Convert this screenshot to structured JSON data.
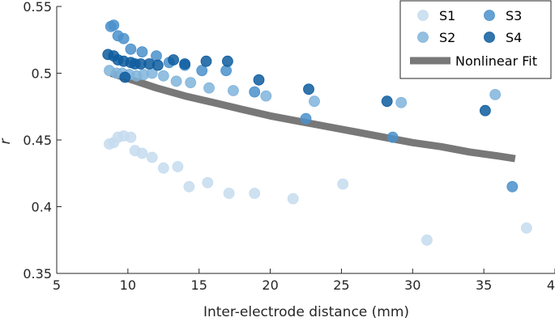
{
  "chart_data": {
    "type": "scatter",
    "xlabel": "Inter-electrode distance (mm)",
    "ylabel": "r",
    "xlim": [
      5,
      40
    ],
    "ylim": [
      0.35,
      0.55
    ],
    "xticks": [
      5,
      10,
      15,
      20,
      25,
      30,
      35,
      40
    ],
    "xtick_labels": [
      "5",
      "10",
      "15",
      "20",
      "25",
      "30",
      "35",
      "40"
    ],
    "yticks": [
      0.35,
      0.4,
      0.45,
      0.5,
      0.55
    ],
    "ytick_labels": [
      "0.35",
      "0.4",
      "0.45",
      "0.5",
      "0.55"
    ],
    "grid": false,
    "legend_position": "top-right",
    "series": [
      {
        "name": "S1",
        "color": "#c6dcef",
        "points": [
          [
            8.7,
            0.447
          ],
          [
            9.0,
            0.448
          ],
          [
            9.3,
            0.452
          ],
          [
            9.7,
            0.453
          ],
          [
            10.2,
            0.452
          ],
          [
            10.5,
            0.442
          ],
          [
            11.0,
            0.44
          ],
          [
            11.7,
            0.437
          ],
          [
            12.5,
            0.429
          ],
          [
            13.5,
            0.43
          ],
          [
            14.3,
            0.415
          ],
          [
            15.6,
            0.418
          ],
          [
            17.1,
            0.41
          ],
          [
            18.9,
            0.41
          ],
          [
            21.6,
            0.406
          ],
          [
            25.1,
            0.417
          ],
          [
            31.0,
            0.375
          ],
          [
            38.0,
            0.384
          ]
        ]
      },
      {
        "name": "S2",
        "color": "#80b4dc",
        "points": [
          [
            8.7,
            0.502
          ],
          [
            9.2,
            0.5
          ],
          [
            9.6,
            0.5
          ],
          [
            10.1,
            0.499
          ],
          [
            10.6,
            0.498
          ],
          [
            11.1,
            0.499
          ],
          [
            11.7,
            0.5
          ],
          [
            12.5,
            0.498
          ],
          [
            13.4,
            0.494
          ],
          [
            14.4,
            0.493
          ],
          [
            15.7,
            0.489
          ],
          [
            17.4,
            0.487
          ],
          [
            19.7,
            0.483
          ],
          [
            23.1,
            0.479
          ],
          [
            29.2,
            0.478
          ],
          [
            35.8,
            0.484
          ]
        ]
      },
      {
        "name": "S3",
        "color": "#4a91cb",
        "points": [
          [
            8.8,
            0.535
          ],
          [
            9.0,
            0.536
          ],
          [
            9.3,
            0.528
          ],
          [
            9.7,
            0.526
          ],
          [
            10.2,
            0.518
          ],
          [
            11.0,
            0.516
          ],
          [
            12.0,
            0.513
          ],
          [
            12.9,
            0.508
          ],
          [
            14.0,
            0.506
          ],
          [
            15.2,
            0.502
          ],
          [
            16.9,
            0.502
          ],
          [
            18.9,
            0.486
          ],
          [
            22.5,
            0.466
          ],
          [
            28.6,
            0.452
          ],
          [
            37.0,
            0.415
          ]
        ]
      },
      {
        "name": "S4",
        "color": "#0e5c9e",
        "points": [
          [
            8.6,
            0.514
          ],
          [
            9.0,
            0.513
          ],
          [
            9.3,
            0.51
          ],
          [
            9.7,
            0.509
          ],
          [
            10.2,
            0.508
          ],
          [
            10.5,
            0.507
          ],
          [
            10.9,
            0.507
          ],
          [
            11.5,
            0.507
          ],
          [
            12.1,
            0.506
          ],
          [
            13.2,
            0.51
          ],
          [
            14.0,
            0.507
          ],
          [
            15.5,
            0.509
          ],
          [
            17.0,
            0.509
          ],
          [
            19.2,
            0.495
          ],
          [
            22.7,
            0.488
          ],
          [
            28.2,
            0.479
          ],
          [
            35.1,
            0.472
          ],
          [
            9.8,
            0.497
          ]
        ]
      }
    ],
    "fit": {
      "name": "Nonlinear Fit",
      "color": "#787878",
      "x": [
        8.8,
        10,
        12,
        14,
        16,
        18,
        20,
        22,
        24,
        26,
        28,
        30,
        32,
        34,
        36,
        37.2
      ],
      "y": [
        0.5,
        0.496,
        0.489,
        0.483,
        0.478,
        0.473,
        0.468,
        0.464,
        0.46,
        0.456,
        0.452,
        0.448,
        0.445,
        0.441,
        0.438,
        0.436
      ]
    }
  }
}
